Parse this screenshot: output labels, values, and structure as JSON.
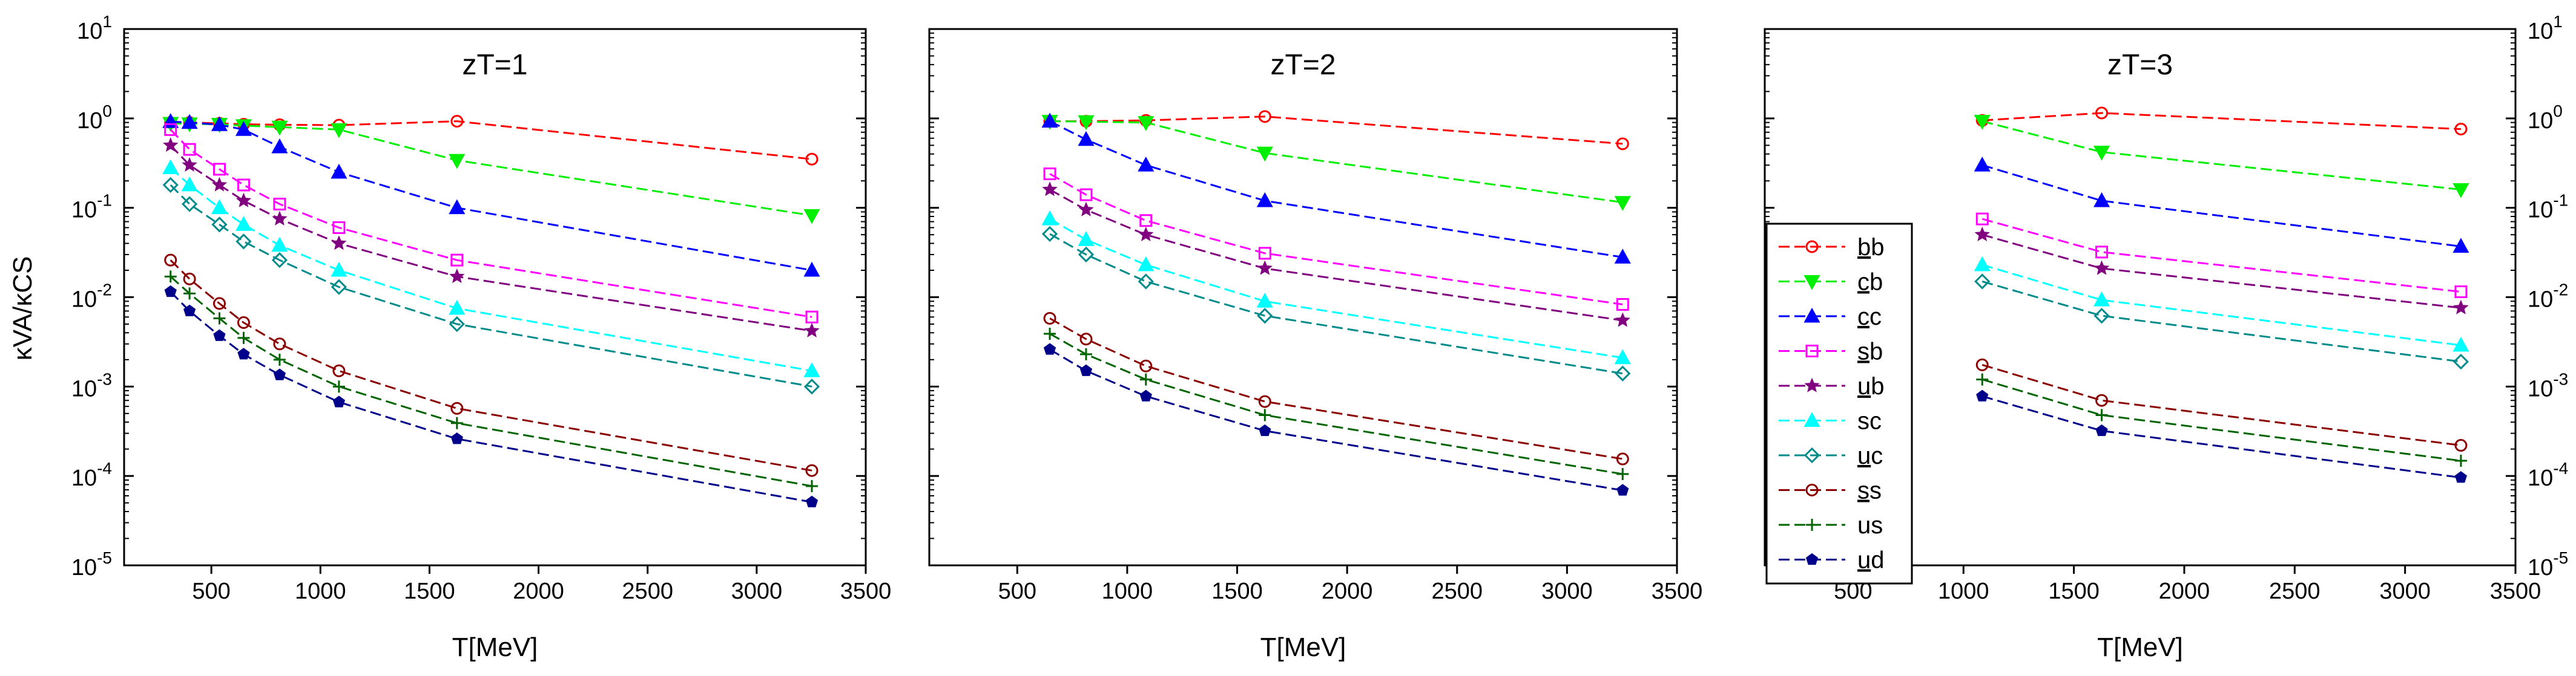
{
  "chart_data": [
    {
      "type": "line",
      "title": "zT=1",
      "xlabel": "T[MeV]",
      "ylabel": "κVA/κCS",
      "xlim": [
        100,
        3500
      ],
      "ylim": [
        1e-05,
        10
      ],
      "yscale": "log",
      "xticks": [
        "500",
        "1000",
        "1500",
        "2000",
        "2500",
        "3000",
        "3500"
      ],
      "yticks_left": [
        "10^-5",
        "10^-4",
        "10^-3",
        "10^-2",
        "10^-1",
        "10^0",
        "10^1"
      ],
      "x": [
        313,
        400,
        537,
        648,
        813,
        1085,
        1626,
        3253
      ],
      "series": [
        {
          "name": "bb",
          "values": [
            0.9,
            0.9,
            0.88,
            0.86,
            0.85,
            0.84,
            0.93,
            0.35
          ]
        },
        {
          "name": "cb",
          "values": [
            0.88,
            0.87,
            0.86,
            0.83,
            0.8,
            0.75,
            0.34,
            0.082
          ]
        },
        {
          "name": "cc",
          "values": [
            0.92,
            0.9,
            0.85,
            0.75,
            0.48,
            0.25,
            0.1,
            0.02
          ]
        },
        {
          "name": "sb",
          "values": [
            0.75,
            0.45,
            0.27,
            0.18,
            0.11,
            0.06,
            0.026,
            0.006
          ]
        },
        {
          "name": "ub",
          "values": [
            0.5,
            0.3,
            0.18,
            0.12,
            0.075,
            0.04,
            0.017,
            0.0042
          ]
        },
        {
          "name": "sc",
          "values": [
            0.28,
            0.18,
            0.1,
            0.065,
            0.038,
            0.02,
            0.0075,
            0.0015
          ]
        },
        {
          "name": "uc",
          "values": [
            0.18,
            0.11,
            0.065,
            0.042,
            0.026,
            0.013,
            0.005,
            0.001
          ]
        },
        {
          "name": "ss",
          "values": [
            0.026,
            0.016,
            0.0085,
            0.0052,
            0.003,
            0.0015,
            0.00057,
            0.000115
          ]
        },
        {
          "name": "us",
          "values": [
            0.017,
            0.011,
            0.0058,
            0.0035,
            0.002,
            0.001,
            0.00039,
            7.7e-05
          ]
        },
        {
          "name": "ud",
          "values": [
            0.0115,
            0.007,
            0.0037,
            0.0023,
            0.00135,
            0.00067,
            0.00026,
            5.1e-05
          ]
        }
      ]
    },
    {
      "type": "line",
      "title": "zT=2",
      "xlabel": "T[MeV]",
      "xlim": [
        100,
        3500
      ],
      "ylim": [
        1e-05,
        10
      ],
      "yscale": "log",
      "xticks": [
        "500",
        "1000",
        "1500",
        "2000",
        "2500",
        "3000",
        "3500"
      ],
      "x": [
        648,
        813,
        1085,
        1626,
        3253
      ],
      "series": [
        {
          "name": "bb",
          "values": [
            0.93,
            0.93,
            0.95,
            1.05,
            0.52
          ]
        },
        {
          "name": "cb",
          "values": [
            0.93,
            0.92,
            0.9,
            0.41,
            0.115
          ]
        },
        {
          "name": "cc",
          "values": [
            0.93,
            0.58,
            0.3,
            0.12,
            0.028
          ]
        },
        {
          "name": "sb",
          "values": [
            0.24,
            0.14,
            0.072,
            0.031,
            0.0083
          ]
        },
        {
          "name": "ub",
          "values": [
            0.16,
            0.095,
            0.05,
            0.021,
            0.0055
          ]
        },
        {
          "name": "sc",
          "values": [
            0.075,
            0.044,
            0.023,
            0.009,
            0.0021
          ]
        },
        {
          "name": "uc",
          "values": [
            0.051,
            0.03,
            0.015,
            0.0062,
            0.0014
          ]
        },
        {
          "name": "ss",
          "values": [
            0.0058,
            0.0034,
            0.0017,
            0.00068,
            0.000155
          ]
        },
        {
          "name": "us",
          "values": [
            0.0039,
            0.0023,
            0.0012,
            0.00048,
            0.000105
          ]
        },
        {
          "name": "ud",
          "values": [
            0.0026,
            0.0015,
            0.00078,
            0.00032,
            6.9e-05
          ]
        }
      ]
    },
    {
      "type": "line",
      "title": "zT=3",
      "xlabel": "T[MeV]",
      "xlim": [
        100,
        3500
      ],
      "ylim": [
        1e-05,
        10
      ],
      "yscale": "log",
      "xticks": [
        "500",
        "1000",
        "1500",
        "2000",
        "2500",
        "3000",
        "3500"
      ],
      "yticks_right": [
        "10^-5",
        "10^-4",
        "10^-3",
        "10^-2",
        "10^-1",
        "10^0",
        "10^1"
      ],
      "x": [
        1085,
        1626,
        3253
      ],
      "series": [
        {
          "name": "bb",
          "values": [
            0.95,
            1.15,
            0.76
          ]
        },
        {
          "name": "cb",
          "values": [
            0.93,
            0.42,
            0.16
          ]
        },
        {
          "name": "cc",
          "values": [
            0.3,
            0.12,
            0.037
          ]
        },
        {
          "name": "sb",
          "values": [
            0.075,
            0.032,
            0.0115
          ]
        },
        {
          "name": "ub",
          "values": [
            0.05,
            0.021,
            0.0076
          ]
        },
        {
          "name": "sc",
          "values": [
            0.023,
            0.0093,
            0.0029
          ]
        },
        {
          "name": "uc",
          "values": [
            0.015,
            0.0062,
            0.0019
          ]
        },
        {
          "name": "ss",
          "values": [
            0.00175,
            0.0007,
            0.00022
          ]
        },
        {
          "name": "us",
          "values": [
            0.0012,
            0.00048,
            0.000148
          ]
        },
        {
          "name": "ud",
          "values": [
            0.00078,
            0.00032,
            9.6e-05
          ]
        }
      ],
      "legend_position": "left"
    }
  ],
  "legend": {
    "entries": [
      {
        "name": "bb",
        "label_bar": "b",
        "label_rest": "b",
        "color": "#ff0000",
        "marker": "circle"
      },
      {
        "name": "cb",
        "label_bar": "c",
        "label_rest": "b",
        "color": "#00ee00",
        "marker": "triangle-down"
      },
      {
        "name": "cc",
        "label_bar": "c",
        "label_rest": "c",
        "color": "#0000ff",
        "marker": "triangle-up"
      },
      {
        "name": "sb",
        "label_bar": "s",
        "label_rest": "b",
        "color": "#ff00ff",
        "marker": "square"
      },
      {
        "name": "ub",
        "label_bar": "u",
        "label_rest": "b",
        "color": "#800080",
        "marker": "star"
      },
      {
        "name": "sc",
        "label_bar": "",
        "label_rest": "sc",
        "color": "#00ffff",
        "marker": "triangle-up"
      },
      {
        "name": "uc",
        "label_bar": "u",
        "label_rest": "c",
        "color": "#008b8b",
        "marker": "diamond"
      },
      {
        "name": "ss",
        "label_bar": "s",
        "label_rest": "s",
        "color": "#8b0000",
        "marker": "circle"
      },
      {
        "name": "us",
        "label_bar": "",
        "label_rest": "us",
        "color": "#006400",
        "marker": "plus"
      },
      {
        "name": "ud",
        "label_bar": "u",
        "label_rest": "d",
        "color": "#00008b",
        "marker": "pentagon"
      }
    ]
  }
}
